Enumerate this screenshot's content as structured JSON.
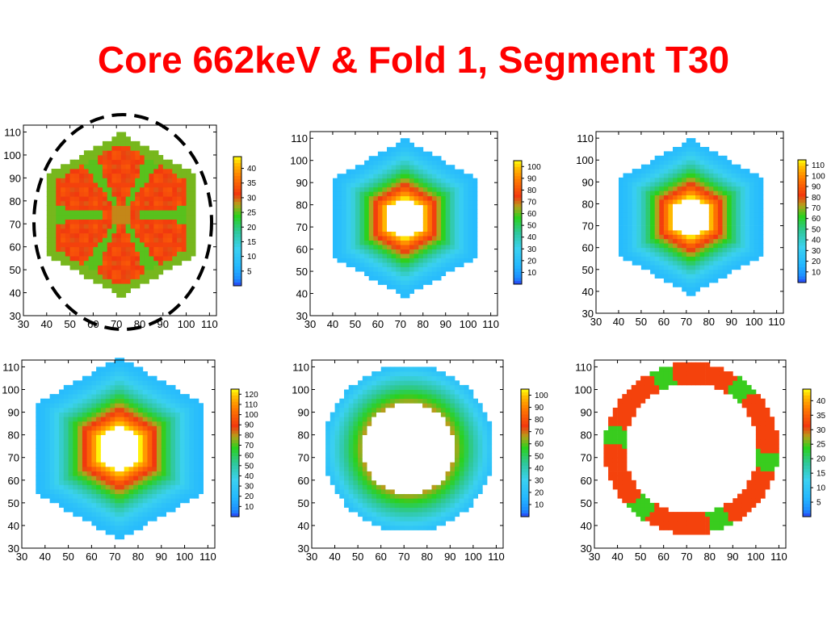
{
  "title": "Core 662keV & Fold 1, Segment T30",
  "colors": {
    "title": "#ff0000",
    "annotation_ellipse": "#000000"
  },
  "chart_data": [
    {
      "type": "heatmap",
      "pattern": "hexagon-core",
      "x_ticks": [
        30,
        40,
        50,
        60,
        70,
        80,
        90,
        100,
        110
      ],
      "y_ticks": [
        30,
        40,
        50,
        60,
        70,
        80,
        90,
        100,
        110
      ],
      "xlim": [
        30,
        113
      ],
      "ylim": [
        30,
        113
      ],
      "colorbar_ticks": [
        5,
        10,
        15,
        20,
        25,
        30,
        35,
        40
      ],
      "colorbar_range": [
        0,
        44
      ],
      "annotation": "dashed-ellipse"
    },
    {
      "type": "heatmap",
      "pattern": "hexagon-fold",
      "x_ticks": [
        30,
        40,
        50,
        60,
        70,
        80,
        90,
        100,
        110
      ],
      "y_ticks": [
        30,
        40,
        50,
        60,
        70,
        80,
        90,
        100,
        110
      ],
      "xlim": [
        30,
        113
      ],
      "ylim": [
        30,
        113
      ],
      "colorbar_ticks": [
        10,
        20,
        30,
        40,
        50,
        60,
        70,
        80,
        90,
        100
      ],
      "colorbar_range": [
        0,
        105
      ]
    },
    {
      "type": "heatmap",
      "pattern": "hexagon-fold",
      "x_ticks": [
        30,
        40,
        50,
        60,
        70,
        80,
        90,
        100,
        110
      ],
      "y_ticks": [
        30,
        40,
        50,
        60,
        70,
        80,
        90,
        100,
        110
      ],
      "xlim": [
        30,
        113
      ],
      "ylim": [
        30,
        113
      ],
      "colorbar_ticks": [
        10,
        20,
        30,
        40,
        50,
        60,
        70,
        80,
        90,
        100,
        110
      ],
      "colorbar_range": [
        0,
        115
      ]
    },
    {
      "type": "heatmap",
      "pattern": "hexagon-fold",
      "x_ticks": [
        30,
        40,
        50,
        60,
        70,
        80,
        90,
        100,
        110
      ],
      "y_ticks": [
        30,
        40,
        50,
        60,
        70,
        80,
        90,
        100,
        110
      ],
      "xlim": [
        30,
        113
      ],
      "ylim": [
        30,
        113
      ],
      "colorbar_ticks": [
        10,
        20,
        30,
        40,
        50,
        60,
        70,
        80,
        90,
        100,
        110,
        120
      ],
      "colorbar_range": [
        0,
        125
      ]
    },
    {
      "type": "heatmap",
      "pattern": "circle-fold",
      "x_ticks": [
        30,
        40,
        50,
        60,
        70,
        80,
        90,
        100,
        110
      ],
      "y_ticks": [
        30,
        40,
        50,
        60,
        70,
        80,
        90,
        100,
        110
      ],
      "xlim": [
        30,
        113
      ],
      "ylim": [
        30,
        113
      ],
      "colorbar_ticks": [
        10,
        20,
        30,
        40,
        50,
        60,
        70,
        80,
        90,
        100
      ],
      "colorbar_range": [
        0,
        105
      ]
    },
    {
      "type": "heatmap",
      "pattern": "ring",
      "x_ticks": [
        30,
        40,
        50,
        60,
        70,
        80,
        90,
        100,
        110
      ],
      "y_ticks": [
        30,
        40,
        50,
        60,
        70,
        80,
        90,
        100,
        110
      ],
      "xlim": [
        30,
        113
      ],
      "ylim": [
        30,
        113
      ],
      "colorbar_ticks": [
        5,
        10,
        15,
        20,
        25,
        30,
        35,
        40
      ],
      "colorbar_range": [
        0,
        44
      ]
    }
  ]
}
